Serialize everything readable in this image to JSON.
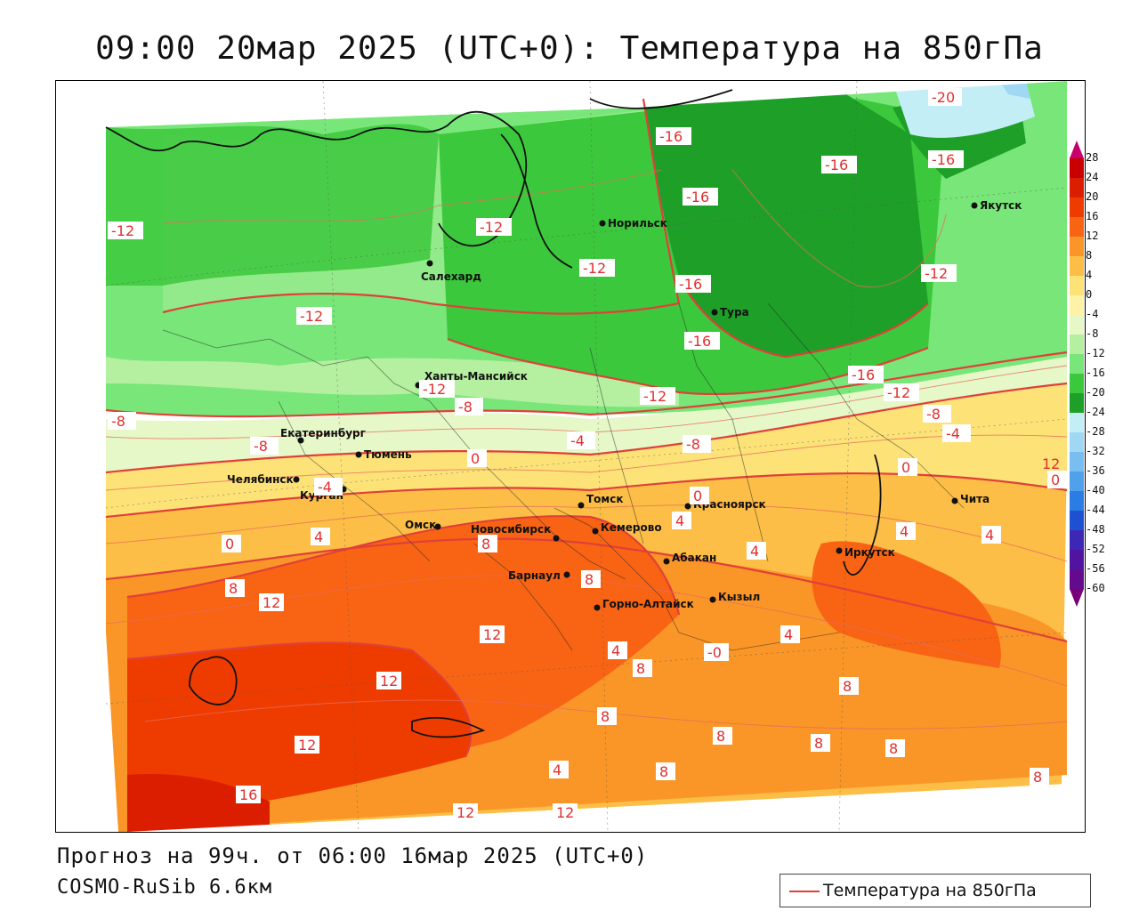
{
  "title": "09:00 20мар 2025 (UTC+0): Температура на 850гПа",
  "forecast_line": "Прогноз на 99ч. от 06:00 16мар 2025 (UTC+0)",
  "model_line": "COSMO-RuSib 6.6км",
  "legend": {
    "series_label": "Температура на 850гПа",
    "line_color": "#e0403a"
  },
  "colorbar": {
    "ticks": [
      "28",
      "24",
      "20",
      "16",
      "12",
      "8",
      "4",
      "0",
      "-4",
      "-8",
      "-12",
      "-16",
      "-20",
      "-24",
      "-28",
      "-32",
      "-36",
      "-40",
      "-44",
      "-48",
      "-52",
      "-56",
      "-60"
    ],
    "colors": [
      "#c8006e",
      "#c80000",
      "#dc1e00",
      "#ee3c00",
      "#f86414",
      "#fa9628",
      "#fcbe46",
      "#fde278",
      "#fdf2a8",
      "#e6f8c8",
      "#b4f0a0",
      "#78e678",
      "#3cc83c",
      "#1ea028",
      "#c4eef6",
      "#a0d8f4",
      "#78bef0",
      "#50a0ec",
      "#2c7ce6",
      "#1e50d2",
      "#3c28b4",
      "#5014a0",
      "#640a8c",
      "#780078"
    ]
  },
  "cities": [
    {
      "name": "Норильск"
    },
    {
      "name": "Якутск"
    },
    {
      "name": "Салехард"
    },
    {
      "name": "Тура"
    },
    {
      "name": "Ханты-Мансийск"
    },
    {
      "name": "Екатеринбург"
    },
    {
      "name": "Тюмень"
    },
    {
      "name": "Челябинск"
    },
    {
      "name": "Курган"
    },
    {
      "name": "Омск"
    },
    {
      "name": "Новосибирск"
    },
    {
      "name": "Томск"
    },
    {
      "name": "Кемерово"
    },
    {
      "name": "Красноярск"
    },
    {
      "name": "Абакан"
    },
    {
      "name": "Барнаул"
    },
    {
      "name": "Горно-Алтайск"
    },
    {
      "name": "Кызыл"
    },
    {
      "name": "Иркутск"
    },
    {
      "name": "Чита"
    }
  ],
  "contour_labels": [
    "-20",
    "-16",
    "-16",
    "-16",
    "-16",
    "-16",
    "-16",
    "-16",
    "-12",
    "-12",
    "-12",
    "-12",
    "-12",
    "-12",
    "-12",
    "-12",
    "-8",
    "-8",
    "-8",
    "-8",
    "-8",
    "-4",
    "-4",
    "-4",
    "0",
    "0",
    "0",
    "0",
    "0",
    "4",
    "4",
    "4",
    "4",
    "4",
    "4",
    "4",
    "4",
    "8",
    "8",
    "8",
    "8",
    "8",
    "8",
    "8",
    "8",
    "8",
    "8",
    "8",
    "12",
    "12",
    "12",
    "12",
    "12",
    "12",
    "12",
    "16",
    "-0"
  ]
}
